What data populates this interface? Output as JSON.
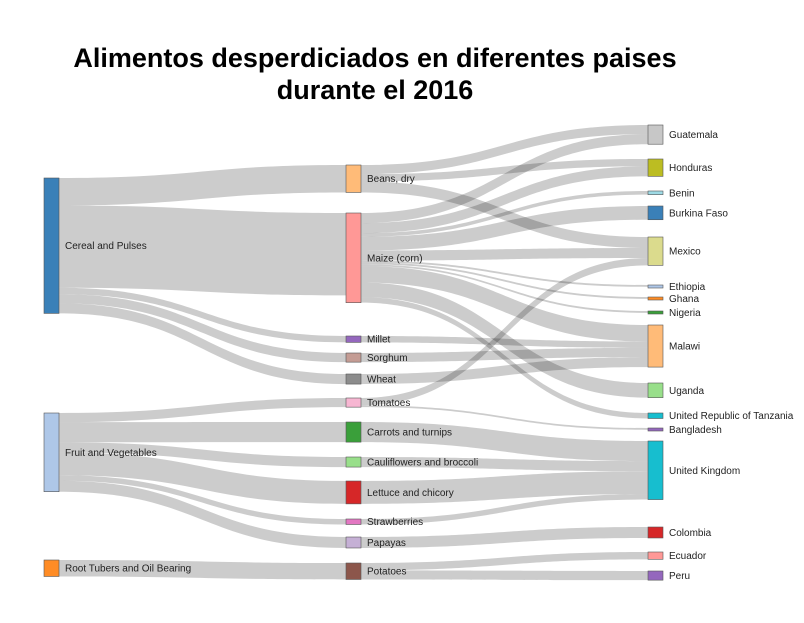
{
  "chart_data": {
    "type": "sankey",
    "title_line1": "Alimentos desperdiciados en diferentes paises",
    "title_line2": "durante el 2016",
    "nodes": [
      {
        "id": "cereal",
        "label": "Cereal and Pulses",
        "color": "#3a80b8",
        "column": 0
      },
      {
        "id": "fruitveg",
        "label": "Fruit and Vegetables",
        "color": "#aec7e8",
        "column": 0
      },
      {
        "id": "roots",
        "label": "Root Tubers and Oil Bearing",
        "color": "#ff8c25",
        "column": 0
      },
      {
        "id": "beans",
        "label": "Beans, dry",
        "color": "#ffbb78",
        "column": 1
      },
      {
        "id": "maize",
        "label": "Maize (corn)",
        "color": "#ff9896",
        "column": 1
      },
      {
        "id": "millet",
        "label": "Millet",
        "color": "#9467bd",
        "column": 1
      },
      {
        "id": "sorghum",
        "label": "Sorghum",
        "color": "#c49c94",
        "column": 1
      },
      {
        "id": "wheat",
        "label": "Wheat",
        "color": "#8c8c8c",
        "column": 1
      },
      {
        "id": "tomatoes",
        "label": "Tomatoes",
        "color": "#f7b6d2",
        "column": 1
      },
      {
        "id": "carrots",
        "label": "Carrots and turnips",
        "color": "#3a9f3a",
        "column": 1
      },
      {
        "id": "cauli",
        "label": "Cauliflowers and broccoli",
        "color": "#98df8a",
        "column": 1
      },
      {
        "id": "lettuce",
        "label": "Lettuce and chicory",
        "color": "#d62728",
        "column": 1
      },
      {
        "id": "straw",
        "label": "Strawberries",
        "color": "#e377c2",
        "column": 1
      },
      {
        "id": "papayas",
        "label": "Papayas",
        "color": "#c5b0d5",
        "column": 1
      },
      {
        "id": "potatoes",
        "label": "Potatoes",
        "color": "#8c564b",
        "column": 1
      },
      {
        "id": "guatemala",
        "label": "Guatemala",
        "color": "#c7c7c7",
        "column": 2
      },
      {
        "id": "honduras",
        "label": "Honduras",
        "color": "#bcbd22",
        "column": 2
      },
      {
        "id": "benin",
        "label": "Benin",
        "color": "#9edae5",
        "column": 2
      },
      {
        "id": "burkina",
        "label": "Burkina Faso",
        "color": "#3a80b8",
        "column": 2
      },
      {
        "id": "mexico",
        "label": "Mexico",
        "color": "#dbdb8d",
        "column": 2
      },
      {
        "id": "ethiopia",
        "label": "Ethiopia",
        "color": "#aec7e8",
        "column": 2
      },
      {
        "id": "ghana",
        "label": "Ghana",
        "color": "#ff8c25",
        "column": 2
      },
      {
        "id": "nigeria",
        "label": "Nigeria",
        "color": "#3a9f3a",
        "column": 2
      },
      {
        "id": "malawi",
        "label": "Malawi",
        "color": "#ffbb78",
        "column": 2
      },
      {
        "id": "uganda",
        "label": "Uganda",
        "color": "#98df8a",
        "column": 2
      },
      {
        "id": "tanzania",
        "label": "United Republic of Tanzania",
        "color": "#17becf",
        "column": 2
      },
      {
        "id": "bangladesh",
        "label": "Bangladesh",
        "color": "#9467bd",
        "column": 2
      },
      {
        "id": "uk",
        "label": "United Kingdom",
        "color": "#17becf",
        "column": 2
      },
      {
        "id": "colombia",
        "label": "Colombia",
        "color": "#d62728",
        "column": 2
      },
      {
        "id": "ecuador",
        "label": "Ecuador",
        "color": "#ff9896",
        "column": 2
      },
      {
        "id": "peru",
        "label": "Peru",
        "color": "#9467bd",
        "column": 2
      }
    ],
    "links": [
      {
        "source": "cereal",
        "target": "beans",
        "value": 30
      },
      {
        "source": "cereal",
        "target": "maize",
        "value": 90
      },
      {
        "source": "cereal",
        "target": "millet",
        "value": 7
      },
      {
        "source": "cereal",
        "target": "sorghum",
        "value": 10
      },
      {
        "source": "cereal",
        "target": "wheat",
        "value": 11
      },
      {
        "source": "fruitveg",
        "target": "tomatoes",
        "value": 10
      },
      {
        "source": "fruitveg",
        "target": "carrots",
        "value": 22
      },
      {
        "source": "fruitveg",
        "target": "cauli",
        "value": 11
      },
      {
        "source": "fruitveg",
        "target": "lettuce",
        "value": 25
      },
      {
        "source": "fruitveg",
        "target": "straw",
        "value": 6
      },
      {
        "source": "fruitveg",
        "target": "papayas",
        "value": 12
      },
      {
        "source": "roots",
        "target": "potatoes",
        "value": 18
      },
      {
        "source": "beans",
        "target": "guatemala",
        "value": 10
      },
      {
        "source": "beans",
        "target": "honduras",
        "value": 8
      },
      {
        "source": "beans",
        "target": "mexico",
        "value": 12
      },
      {
        "source": "maize",
        "target": "guatemala",
        "value": 11
      },
      {
        "source": "maize",
        "target": "honduras",
        "value": 11
      },
      {
        "source": "maize",
        "target": "benin",
        "value": 4
      },
      {
        "source": "maize",
        "target": "burkina",
        "value": 15
      },
      {
        "source": "maize",
        "target": "mexico",
        "value": 11
      },
      {
        "source": "maize",
        "target": "ethiopia",
        "value": 2
      },
      {
        "source": "maize",
        "target": "ghana",
        "value": 2
      },
      {
        "source": "maize",
        "target": "nigeria",
        "value": 2
      },
      {
        "source": "maize",
        "target": "malawi",
        "value": 18
      },
      {
        "source": "maize",
        "target": "uganda",
        "value": 16
      },
      {
        "source": "maize",
        "target": "tanzania",
        "value": 6
      },
      {
        "source": "millet",
        "target": "malawi",
        "value": 7
      },
      {
        "source": "sorghum",
        "target": "malawi",
        "value": 10
      },
      {
        "source": "wheat",
        "target": "malawi",
        "value": 11
      },
      {
        "source": "tomatoes",
        "target": "mexico",
        "value": 8
      },
      {
        "source": "tomatoes",
        "target": "bangladesh",
        "value": 2
      },
      {
        "source": "carrots",
        "target": "uk",
        "value": 22
      },
      {
        "source": "cauli",
        "target": "uk",
        "value": 11
      },
      {
        "source": "lettuce",
        "target": "uk",
        "value": 25
      },
      {
        "source": "straw",
        "target": "uk",
        "value": 6
      },
      {
        "source": "papayas",
        "target": "colombia",
        "value": 12
      },
      {
        "source": "potatoes",
        "target": "ecuador",
        "value": 8
      },
      {
        "source": "potatoes",
        "target": "peru",
        "value": 10
      }
    ]
  }
}
